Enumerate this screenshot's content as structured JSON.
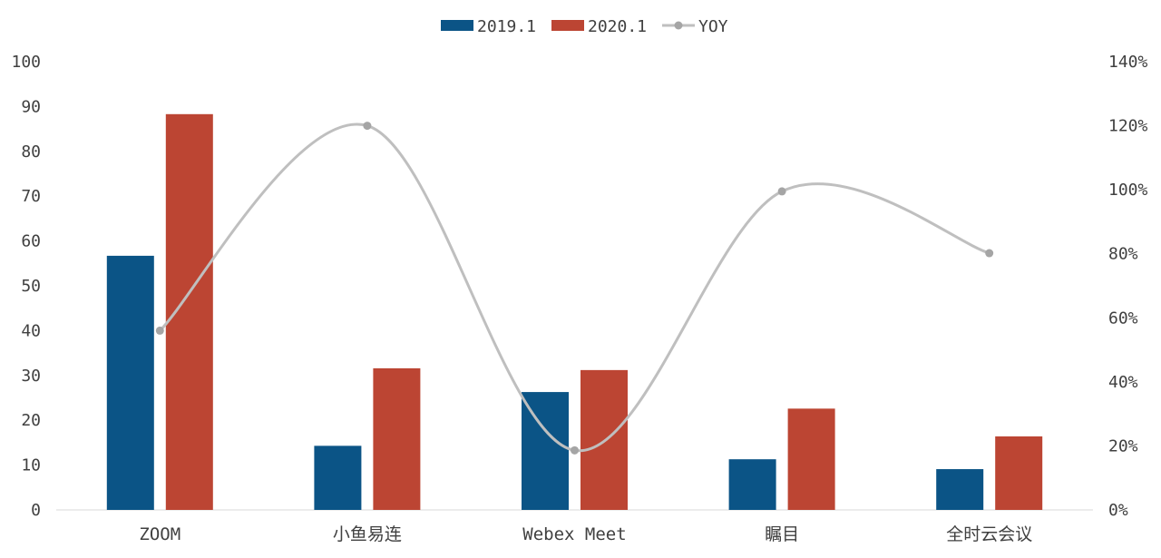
{
  "chart_data": {
    "type": "bar",
    "categories": [
      "ZOOM",
      "小鱼易连",
      "Webex Meet",
      "瞩目",
      "全时云会议"
    ],
    "series": [
      {
        "name": "2019.1",
        "type": "bar",
        "axis": "left",
        "color": "#0B5486",
        "values": [
          56.7,
          14.3,
          26.3,
          11.3,
          9.1
        ]
      },
      {
        "name": "2020.1",
        "type": "bar",
        "axis": "left",
        "color": "#BC4533",
        "values": [
          88.3,
          31.6,
          31.2,
          22.6,
          16.4
        ]
      },
      {
        "name": "YOY",
        "type": "line",
        "axis": "right",
        "smooth": true,
        "color": "#BFBFBF",
        "marker_color": "#A5A5A5",
        "values": [
          56,
          120,
          18.6,
          99.5,
          80.2
        ]
      }
    ],
    "y_left": {
      "min": 0,
      "max": 100,
      "step": 10,
      "ticks": [
        "0",
        "10",
        "20",
        "30",
        "40",
        "50",
        "60",
        "70",
        "80",
        "90",
        "100"
      ]
    },
    "y_right": {
      "min": 0,
      "max": 140,
      "step": 20,
      "ticks": [
        "0%",
        "20%",
        "40%",
        "60%",
        "80%",
        "100%",
        "120%",
        "140%"
      ]
    },
    "legend": {
      "position": "top",
      "items": [
        "2019.1",
        "2020.1",
        "YOY"
      ]
    },
    "grid": false
  }
}
